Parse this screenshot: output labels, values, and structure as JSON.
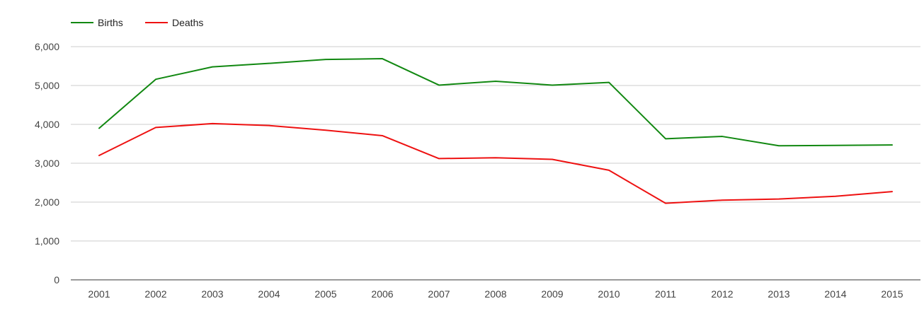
{
  "chart_data": {
    "type": "line",
    "title": "",
    "xlabel": "",
    "ylabel": "",
    "x": [
      "2001",
      "2002",
      "2003",
      "2004",
      "2005",
      "2006",
      "2007",
      "2008",
      "2009",
      "2010",
      "2011",
      "2012",
      "2013",
      "2014",
      "2015"
    ],
    "ylim": [
      0,
      6000
    ],
    "yticks": [
      0,
      1000,
      2000,
      3000,
      4000,
      5000,
      6000
    ],
    "ytick_labels": [
      "0",
      "1,000",
      "2,000",
      "3,000",
      "4,000",
      "5,000",
      "6,000"
    ],
    "grid": true,
    "legend_position": "top-left",
    "series": [
      {
        "name": "Births",
        "color": "#118811",
        "values": [
          3900,
          5160,
          5480,
          5570,
          5670,
          5690,
          5010,
          5110,
          5010,
          5080,
          3630,
          3690,
          3450,
          3460,
          3470
        ]
      },
      {
        "name": "Deaths",
        "color": "#ee1111",
        "values": [
          3200,
          3920,
          4020,
          3970,
          3850,
          3710,
          3120,
          3140,
          3100,
          2820,
          1970,
          2050,
          2080,
          2150,
          2270
        ]
      }
    ]
  }
}
